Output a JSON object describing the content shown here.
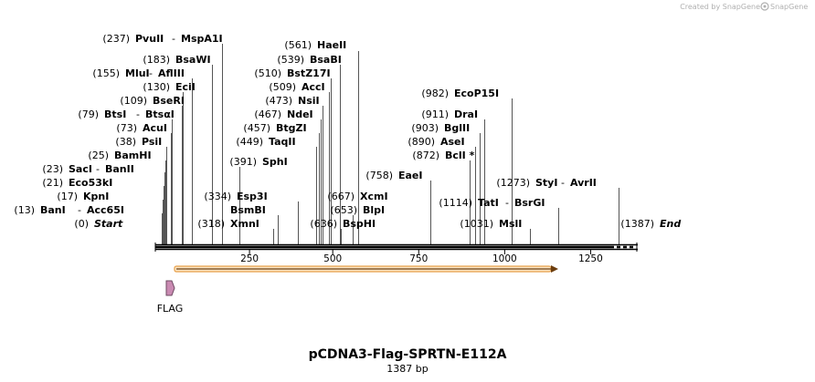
{
  "watermark": "Created by SnapGene",
  "plasmid": {
    "name": "pCDNA3-Flag-SPRTN-E112A",
    "length_label": "1387 bp"
  },
  "axis_ticks": [
    "250",
    "500",
    "750",
    "1000",
    "1250"
  ],
  "features": [
    {
      "name": "FLAG",
      "color": "#c98ab2"
    }
  ],
  "orf_color": "#e8a04a",
  "sites": [
    {
      "id": "start",
      "pos": "(0)",
      "names": [
        "Start"
      ],
      "italic": true
    },
    {
      "id": "bani",
      "pos": "(13)",
      "names": [
        "BanI",
        "Acc65I"
      ]
    },
    {
      "id": "kpni",
      "pos": "(17)",
      "names": [
        "KpnI"
      ]
    },
    {
      "id": "eco53ki",
      "pos": "(21)",
      "names": [
        "Eco53kI"
      ]
    },
    {
      "id": "saci",
      "pos": "(23)",
      "names": [
        "SacI",
        "BanII"
      ]
    },
    {
      "id": "bamhi",
      "pos": "(25)",
      "names": [
        "BamHI"
      ]
    },
    {
      "id": "psii",
      "pos": "(38)",
      "names": [
        "PsiI"
      ]
    },
    {
      "id": "acui",
      "pos": "(73)",
      "names": [
        "AcuI"
      ]
    },
    {
      "id": "btsi",
      "pos": "(79)",
      "names": [
        "BtsI",
        "BtsαI"
      ]
    },
    {
      "id": "bseri",
      "pos": "(109)",
      "names": [
        "BseRI"
      ]
    },
    {
      "id": "ecii",
      "pos": "(130)",
      "names": [
        "EciI"
      ]
    },
    {
      "id": "mlui",
      "pos": "(155)",
      "names": [
        "MluI",
        "AflIII"
      ]
    },
    {
      "id": "bsawi",
      "pos": "(183)",
      "names": [
        "BsaWI"
      ]
    },
    {
      "id": "pvuii",
      "pos": "(237)",
      "names": [
        "PvuII",
        "MspA1I"
      ]
    },
    {
      "id": "xmni",
      "pos": "(318)",
      "names": [
        "XmnI"
      ]
    },
    {
      "id": "bsmbi",
      "pos": "",
      "names": [
        "BsmBI"
      ]
    },
    {
      "id": "esp3i",
      "pos": "(334)",
      "names": [
        "Esp3I"
      ]
    },
    {
      "id": "sphi",
      "pos": "(391)",
      "names": [
        "SphI"
      ]
    },
    {
      "id": "taqii",
      "pos": "(449)",
      "names": [
        "TaqII"
      ]
    },
    {
      "id": "btgzi",
      "pos": "(457)",
      "names": [
        "BtgZI"
      ]
    },
    {
      "id": "ndei",
      "pos": "(467)",
      "names": [
        "NdeI"
      ]
    },
    {
      "id": "nsii",
      "pos": "(473)",
      "names": [
        "NsiI"
      ]
    },
    {
      "id": "acci",
      "pos": "(509)",
      "names": [
        "AccI"
      ]
    },
    {
      "id": "bstz17i",
      "pos": "(510)",
      "names": [
        "BstZ17I"
      ]
    },
    {
      "id": "bsabi",
      "pos": "(539)",
      "names": [
        "BsaBI"
      ]
    },
    {
      "id": "haeii",
      "pos": "(561)",
      "names": [
        "HaeII"
      ]
    },
    {
      "id": "bsphi",
      "pos": "(636)",
      "names": [
        "BspHI"
      ]
    },
    {
      "id": "blpi",
      "pos": "(653)",
      "names": [
        "BlpI"
      ]
    },
    {
      "id": "xcmi",
      "pos": "(667)",
      "names": [
        "XcmI"
      ]
    },
    {
      "id": "eaei",
      "pos": "(758)",
      "names": [
        "EaeI"
      ]
    },
    {
      "id": "bcli",
      "pos": "(872)",
      "names": [
        "BclI *"
      ]
    },
    {
      "id": "asei",
      "pos": "(890)",
      "names": [
        "AseI"
      ]
    },
    {
      "id": "bglii",
      "pos": "(903)",
      "names": [
        "BglII"
      ]
    },
    {
      "id": "drai",
      "pos": "(911)",
      "names": [
        "DraI"
      ]
    },
    {
      "id": "ecop15i",
      "pos": "(982)",
      "names": [
        "EcoP15I"
      ]
    },
    {
      "id": "msli",
      "pos": "(1031)",
      "names": [
        "MslI"
      ]
    },
    {
      "id": "tati",
      "pos": "(1114)",
      "names": [
        "TatI",
        "BsrGI"
      ]
    },
    {
      "id": "styi",
      "pos": "(1273)",
      "names": [
        "StyI",
        "AvrII"
      ]
    },
    {
      "id": "end",
      "pos": "(1387)",
      "names": [
        "End"
      ],
      "italic": true
    }
  ]
}
